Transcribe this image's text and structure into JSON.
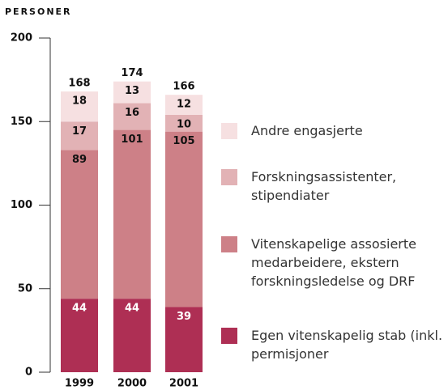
{
  "chart_data": {
    "type": "stacked_bar",
    "y_label": "PERSONER",
    "categories": [
      "1999",
      "2000",
      "2001"
    ],
    "series": [
      {
        "name": "Egen vitenskapelig stab (inkl. permisjoner",
        "color": "#ae2f54",
        "label_color": "#ffffff",
        "values": [
          44,
          44,
          39
        ]
      },
      {
        "name": "Vitenskapelige assosierte medarbeidere, ekstern forskningsledelse og DRF",
        "color": "#cd8087",
        "label_color": "#111111",
        "values": [
          89,
          101,
          105
        ]
      },
      {
        "name": "Forskningsassistenter, stipendiater",
        "color": "#e2b2b5",
        "label_color": "#111111",
        "values": [
          17,
          16,
          10
        ]
      },
      {
        "name": "Andre engasjerte",
        "color": "#f6e0e1",
        "label_color": "#111111",
        "values": [
          18,
          13,
          12
        ]
      }
    ],
    "totals": [
      168,
      174,
      166
    ],
    "ylim": [
      0,
      200
    ],
    "yticks": [
      0,
      50,
      100,
      150,
      200
    ]
  }
}
